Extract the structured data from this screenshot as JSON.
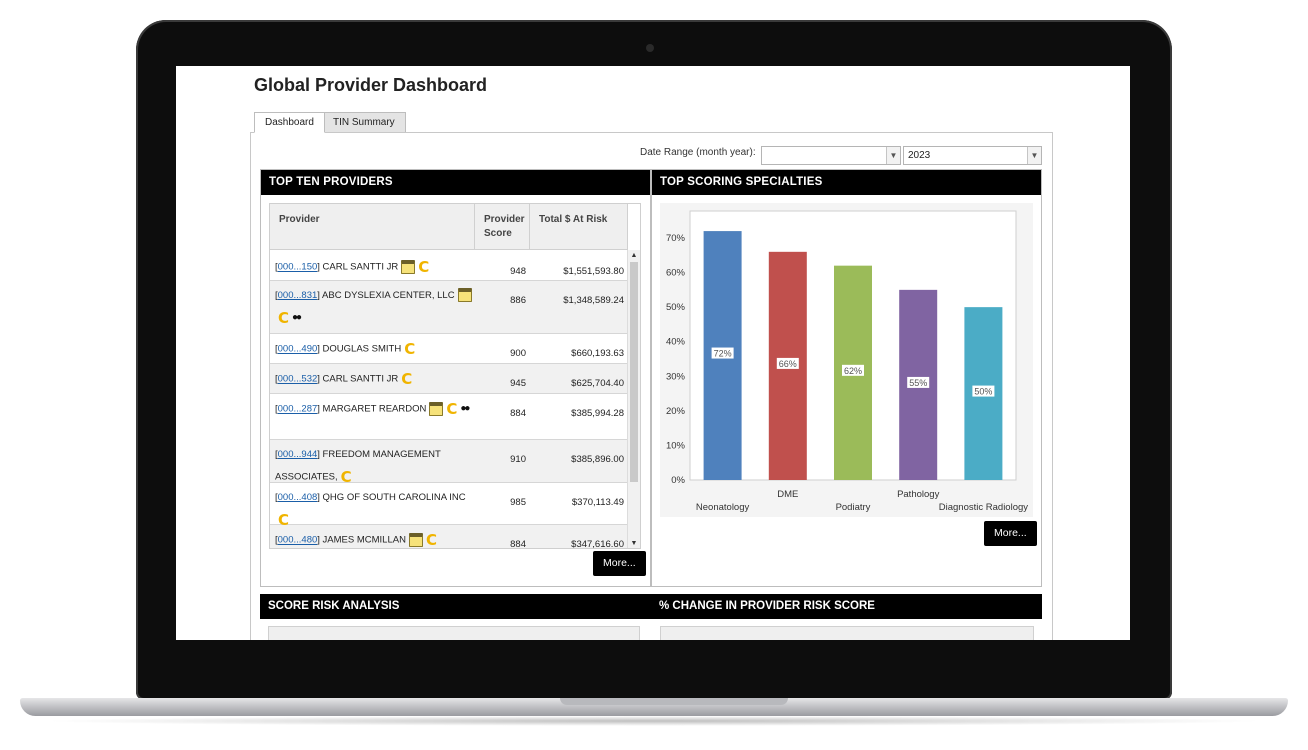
{
  "page": {
    "title": "Global Provider Dashboard"
  },
  "tabs": [
    {
      "label": "Dashboard",
      "active": true
    },
    {
      "label": "TIN Summary",
      "active": false
    }
  ],
  "date_range": {
    "label": "Date Range (month year):",
    "month_value": "",
    "year_value": "2023"
  },
  "top_providers": {
    "title": "TOP TEN PROVIDERS",
    "columns": [
      "Provider",
      "Provider Score",
      "Total $ At Risk"
    ],
    "rows": [
      {
        "id": "000...150",
        "name": "CARL SANTTI JR",
        "score": "948",
        "total": "$1,551,593.80",
        "icons": [
          "note-icon",
          "c-icon"
        ]
      },
      {
        "id": "000...831",
        "name": "ABC DYSLEXIA CENTER, LLC",
        "score": "886",
        "total": "$1,348,589.24",
        "icons": [
          "note-icon",
          "c-icon",
          "binoculars-icon"
        ]
      },
      {
        "id": "000...490",
        "name": "DOUGLAS SMITH",
        "score": "900",
        "total": "$660,193.63",
        "icons": [
          "c-icon"
        ]
      },
      {
        "id": "000...532",
        "name": "CARL SANTTI JR",
        "score": "945",
        "total": "$625,704.40",
        "icons": [
          "c-icon"
        ]
      },
      {
        "id": "000...287",
        "name": "MARGARET REARDON",
        "score": "884",
        "total": "$385,994.28",
        "icons": [
          "note-icon",
          "c-icon",
          "binoculars-icon"
        ]
      },
      {
        "id": "000...944",
        "name": "FREEDOM MANAGEMENT ASSOCIATES,",
        "score": "910",
        "total": "$385,896.00",
        "icons": [
          "c-icon"
        ]
      },
      {
        "id": "000...408",
        "name": "QHG OF SOUTH CAROLINA INC",
        "score": "985",
        "total": "$370,113.49",
        "icons": [
          "c-icon"
        ]
      },
      {
        "id": "000...480",
        "name": "JAMES MCMILLAN",
        "score": "884",
        "total": "$347,616.60",
        "icons": [
          "note-icon",
          "c-icon"
        ]
      }
    ],
    "more_label": "More..."
  },
  "top_specialties": {
    "title": "TOP SCORING SPECIALTIES",
    "more_label": "More..."
  },
  "chart_data": {
    "type": "bar",
    "title": "",
    "xlabel": "",
    "ylabel": "",
    "categories": [
      "Neonatology",
      "DME",
      "Podiatry",
      "Pathology",
      "Diagnostic Radiology"
    ],
    "values": [
      72,
      66,
      62,
      55,
      50
    ],
    "data_labels": [
      "72%",
      "66%",
      "62%",
      "55%",
      "50%"
    ],
    "colors": [
      "#4f81bd",
      "#c0504d",
      "#9bbb59",
      "#8064a2",
      "#4bacc6"
    ],
    "ylim": [
      0,
      70
    ],
    "yticks": [
      "0%",
      "10%",
      "20%",
      "30%",
      "40%",
      "50%",
      "60%",
      "70%"
    ],
    "grid": false,
    "legend": "none"
  },
  "score_risk": {
    "title": "SCORE RISK ANALYSIS"
  },
  "pct_change": {
    "title": "% CHANGE IN PROVIDER RISK SCORE"
  }
}
